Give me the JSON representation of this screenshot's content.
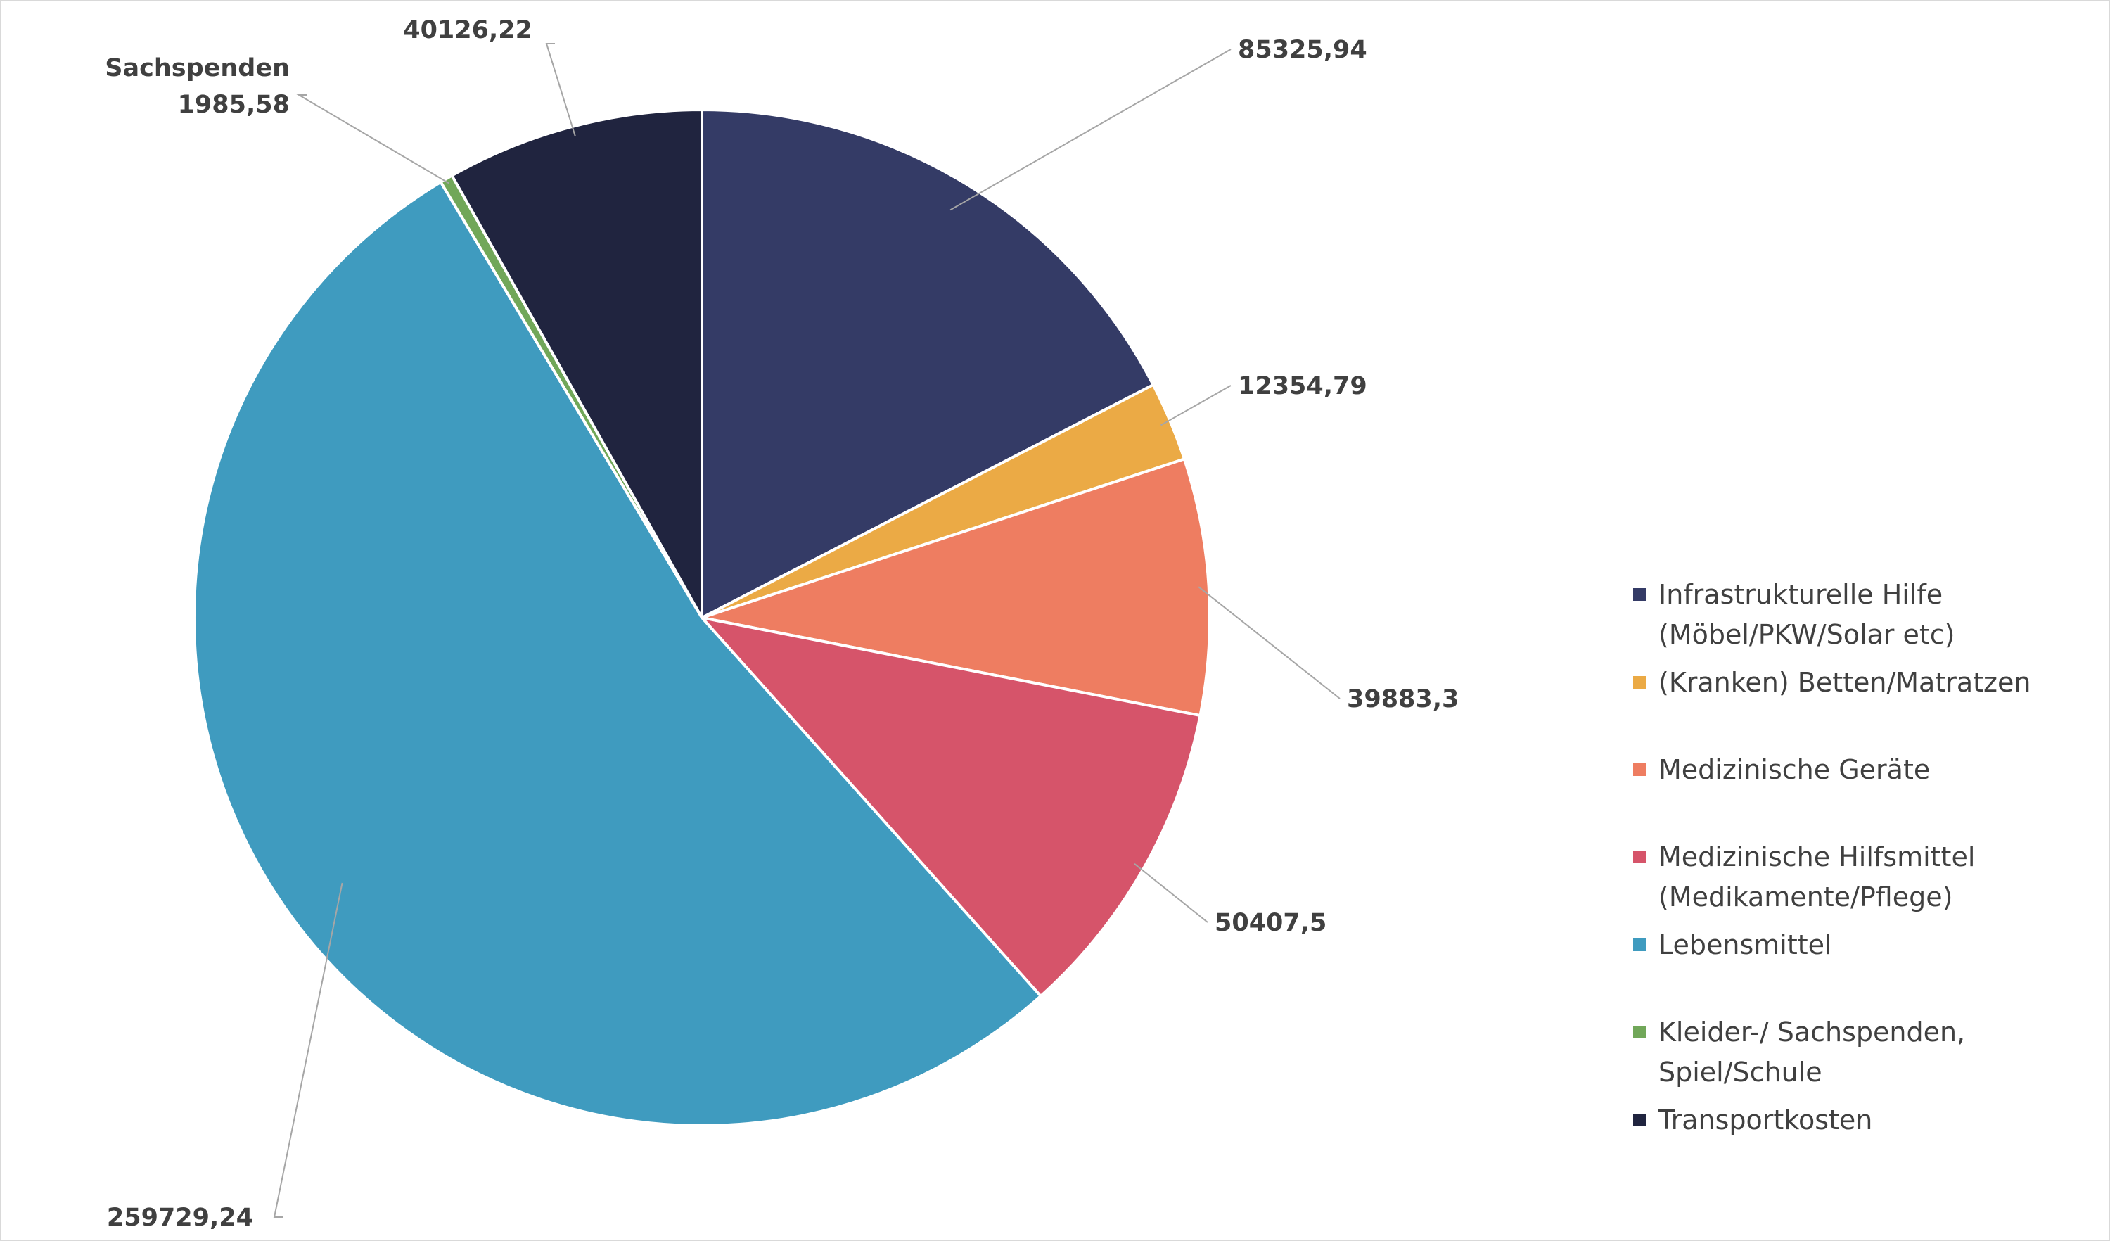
{
  "chart_data": {
    "type": "pie",
    "start_angle_deg": 0,
    "direction": "clockwise",
    "slices": [
      {
        "key": "infra",
        "label": "Infrastrukturelle Hilfe (Möbel/PKW/Solar etc)",
        "legend_lines": [
          "Infrastrukturelle Hilfe",
          "(Möbel/PKW/Solar etc)"
        ],
        "value": 85325.94,
        "display": "85325,94",
        "data_label_lines": [
          "85325,94"
        ],
        "color": "#343b66"
      },
      {
        "key": "betten",
        "label": "(Kranken) Betten/Matratzen",
        "legend_lines": [
          "(Kranken) Betten/Matratzen"
        ],
        "value": 12354.79,
        "display": "12354,79",
        "data_label_lines": [
          "12354,79"
        ],
        "color": "#ebaa45"
      },
      {
        "key": "geraete",
        "label": "Medizinische Geräte",
        "legend_lines": [
          "Medizinische Geräte"
        ],
        "value": 39883.3,
        "display": "39883,3",
        "data_label_lines": [
          "39883,3"
        ],
        "color": "#ee7d61"
      },
      {
        "key": "hilfsmittel",
        "label": "Medizinische Hilfsmittel (Medikamente/Pflege)",
        "legend_lines": [
          "Medizinische Hilfsmittel",
          "(Medikamente/Pflege)"
        ],
        "value": 50407.5,
        "display": "50407,5",
        "data_label_lines": [
          "50407,5"
        ],
        "color": "#d6546a"
      },
      {
        "key": "lebensmittel",
        "label": "Lebensmittel",
        "legend_lines": [
          "Lebensmittel"
        ],
        "value": 259729.24,
        "display": "259729,24",
        "data_label_lines": [
          "259729,24"
        ],
        "color": "#3f9bbf"
      },
      {
        "key": "kleider",
        "label": "Kleider-/ Sachspenden, Spiel/Schule",
        "legend_lines": [
          "Kleider-/ Sachspenden,",
          "Spiel/Schule"
        ],
        "value": 1985.58,
        "display": "1985,58",
        "data_label_lines": [
          "Sachspenden",
          "1985,58"
        ],
        "color": "#71a759"
      },
      {
        "key": "transport",
        "label": "Transportkosten",
        "legend_lines": [
          "Transportkosten"
        ],
        "value": 40126.22,
        "display": "40126,22",
        "data_label_lines": [
          "40126,22"
        ],
        "color": "#20243f"
      }
    ],
    "legend_position": "right"
  }
}
